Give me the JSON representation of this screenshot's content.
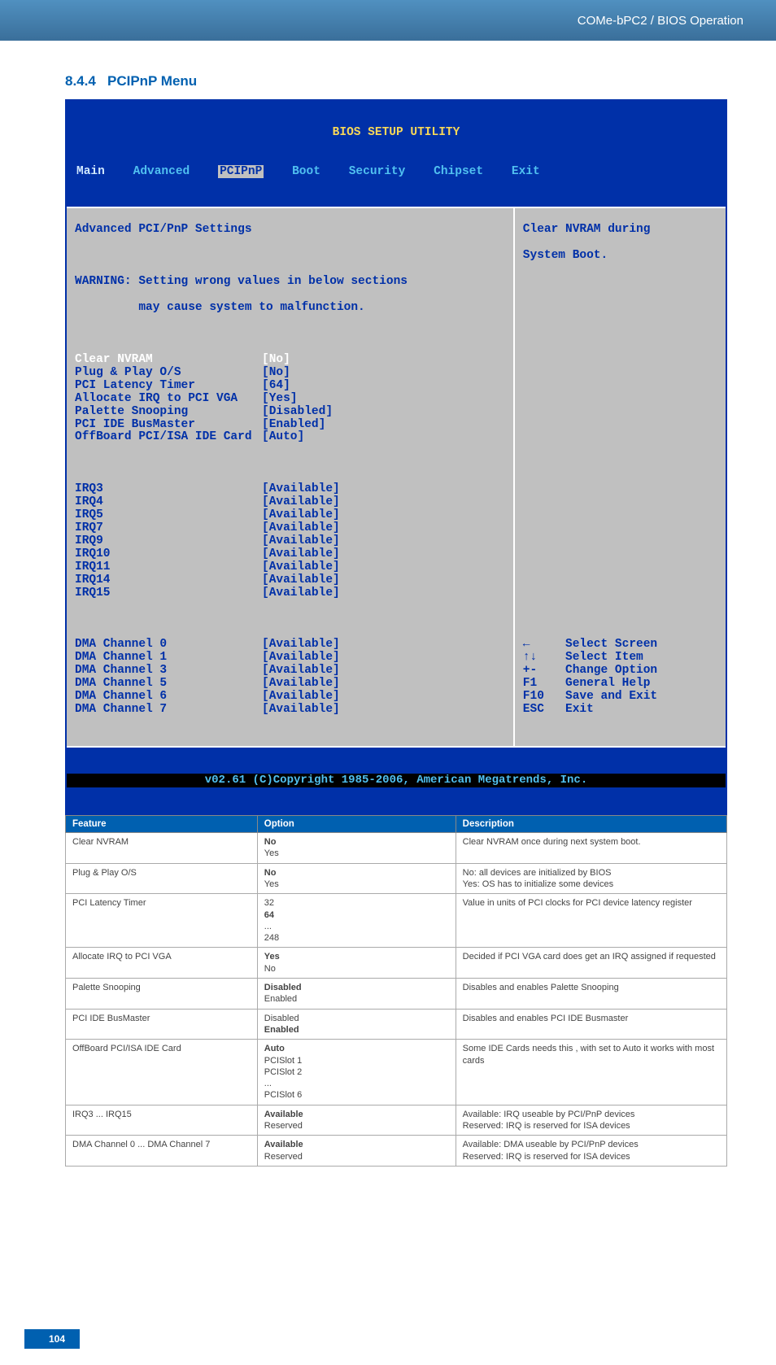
{
  "header": {
    "breadcrumb": "COMe-bPC2 / BIOS Operation"
  },
  "section": {
    "number": "8.4.4",
    "title": "PCIPnP Menu"
  },
  "bios": {
    "title": "BIOS SETUP UTILITY",
    "menu": [
      "Main",
      "Advanced",
      "PCIPnP",
      "Boot",
      "Security",
      "Chipset",
      "Exit"
    ],
    "subtitle": "Advanced PCI/PnP Settings",
    "warning_line1": "WARNING: Setting wrong values in below sections",
    "warning_line2": "         may cause system to malfunction.",
    "help_line1": "Clear NVRAM during",
    "help_line2": "System Boot.",
    "settings_top": [
      {
        "label": "Clear NVRAM",
        "value": "[No]",
        "hl": true
      },
      {
        "label": "Plug & Play O/S",
        "value": "[No]"
      },
      {
        "label": "PCI Latency Timer",
        "value": "[64]"
      },
      {
        "label": "Allocate IRQ to PCI VGA",
        "value": "[Yes]"
      },
      {
        "label": "Palette Snooping",
        "value": "[Disabled]"
      },
      {
        "label": "PCI IDE BusMaster",
        "value": "[Enabled]"
      },
      {
        "label": "OffBoard PCI/ISA IDE Card",
        "value": "[Auto]"
      }
    ],
    "irqs": [
      {
        "label": "IRQ3",
        "value": "[Available]"
      },
      {
        "label": "IRQ4",
        "value": "[Available]"
      },
      {
        "label": "IRQ5",
        "value": "[Available]"
      },
      {
        "label": "IRQ7",
        "value": "[Available]"
      },
      {
        "label": "IRQ9",
        "value": "[Available]"
      },
      {
        "label": "IRQ10",
        "value": "[Available]"
      },
      {
        "label": "IRQ11",
        "value": "[Available]"
      },
      {
        "label": "IRQ14",
        "value": "[Available]"
      },
      {
        "label": "IRQ15",
        "value": "[Available]"
      }
    ],
    "dmas": [
      {
        "label": "DMA Channel 0",
        "value": "[Available]"
      },
      {
        "label": "DMA Channel 1",
        "value": "[Available]"
      },
      {
        "label": "DMA Channel 3",
        "value": "[Available]"
      },
      {
        "label": "DMA Channel 5",
        "value": "[Available]"
      },
      {
        "label": "DMA Channel 6",
        "value": "[Available]"
      },
      {
        "label": "DMA Channel 7",
        "value": "[Available]"
      }
    ],
    "nav": [
      {
        "key": "←",
        "label": "Select Screen"
      },
      {
        "key": "↑↓",
        "label": "Select Item"
      },
      {
        "key": "+-",
        "label": "Change Option"
      },
      {
        "key": "F1",
        "label": "General Help"
      },
      {
        "key": "F10",
        "label": "Save and Exit"
      },
      {
        "key": "ESC",
        "label": "Exit"
      }
    ],
    "copyright": "v02.61 (C)Copyright 1985-2006, American Megatrends, Inc."
  },
  "table": {
    "headers": [
      "Feature",
      "Option",
      "Description"
    ],
    "rows": [
      {
        "f": "Clear NVRAM",
        "o": "<b>No</b>\nYes",
        "d": "Clear NVRAM once during next system boot."
      },
      {
        "f": "Plug & Play O/S",
        "o": "<b>No</b>\nYes",
        "d": "No: all devices are initialized by BIOS\nYes: OS has to initialize some devices"
      },
      {
        "f": "PCI Latency Timer",
        "o": "32\n<b>64</b>\n...\n248",
        "d": "Value in units of PCI clocks for PCI device latency register"
      },
      {
        "f": "Allocate IRQ to PCI VGA",
        "o": "<b>Yes</b>\nNo",
        "d": "Decided if PCI VGA card does get an IRQ assigned if requested"
      },
      {
        "f": "Palette Snooping",
        "o": "<b>Disabled</b>\nEnabled",
        "d": "Disables and enables Palette Snooping"
      },
      {
        "f": "PCI IDE BusMaster",
        "o": "Disabled\n<b>Enabled</b>",
        "d": "Disables and enables PCI IDE Busmaster"
      },
      {
        "f": "OffBoard PCI/ISA IDE Card",
        "o": "<b>Auto</b>\nPCISlot 1\nPCISlot 2\n...\nPCISlot 6",
        "d": "Some IDE Cards needs this , with set to Auto it works with most cards"
      },
      {
        "f": "IRQ3 ... IRQ15",
        "o": "<b>Available</b>\nReserved",
        "d": "Available: IRQ useable by PCI/PnP devices\nReserved: IRQ is reserved for ISA devices"
      },
      {
        "f": "DMA Channel 0 ... DMA Channel 7",
        "o": "<b>Available</b>\nReserved",
        "d": "Available: DMA useable by PCI/PnP devices\nReserved: IRQ is reserved for ISA devices"
      }
    ]
  },
  "page_number": "104"
}
